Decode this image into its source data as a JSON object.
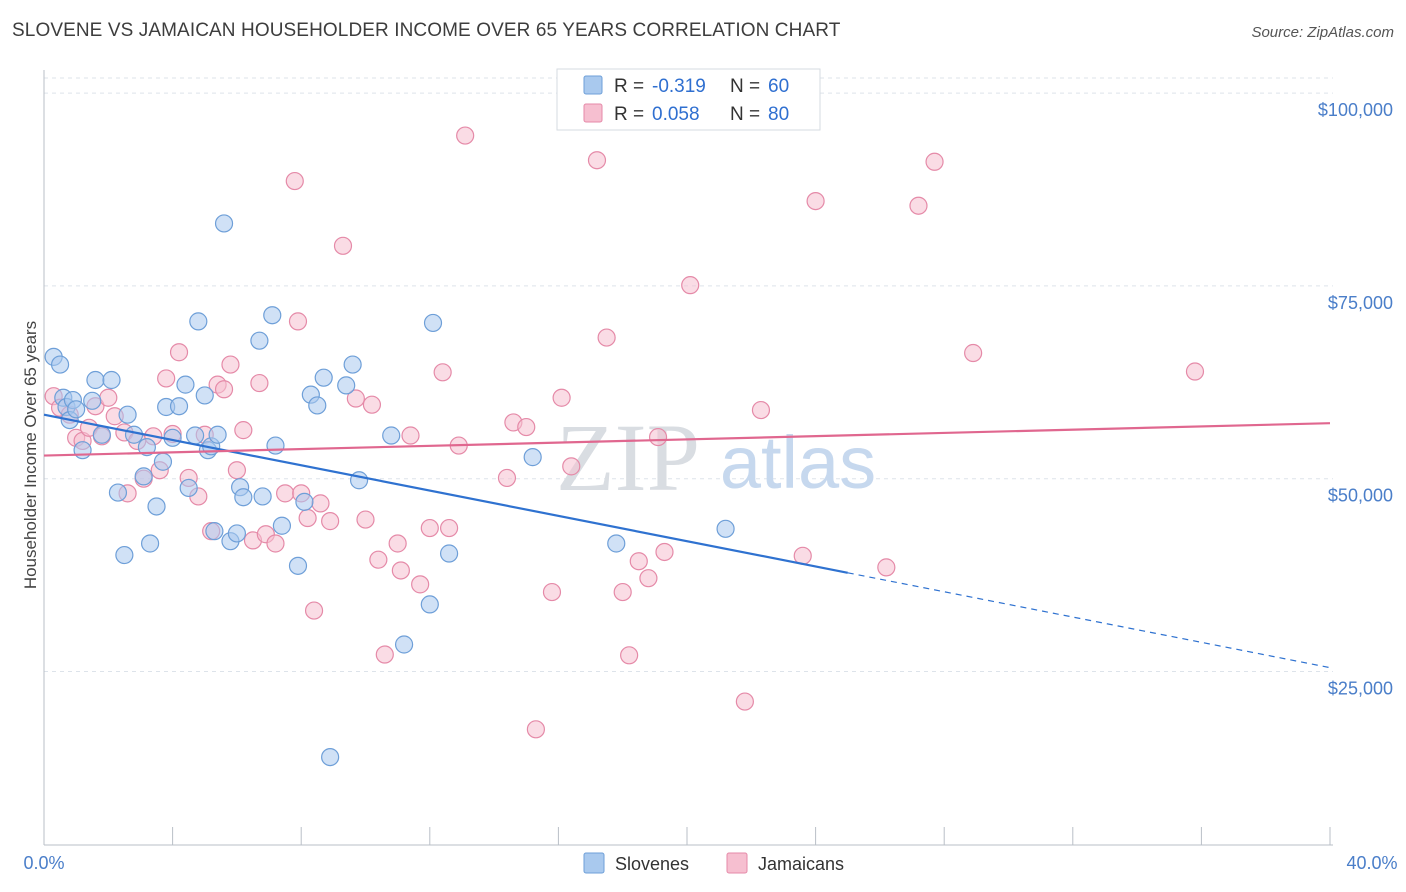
{
  "header": {
    "title": "SLOVENE VS JAMAICAN HOUSEHOLDER INCOME OVER 65 YEARS CORRELATION CHART",
    "source": "Source: ZipAtlas.com"
  },
  "watermark": {
    "zip": "ZIP",
    "atlas": "atlas"
  },
  "legend_top": {
    "rows": [
      {
        "r_label": "R = ",
        "r_value": "-0.319",
        "n_label": "N = ",
        "n_value": "60",
        "color": "#a9c9ee"
      },
      {
        "r_label": "R = ",
        "r_value": "0.058",
        "n_label": "N = ",
        "n_value": "80",
        "color": "#f4b9cc"
      }
    ]
  },
  "legend_bottom": [
    "Slovenes",
    "Jamaicans"
  ],
  "colors": {
    "slovene_fill": "#a9c9ee",
    "slovene_stroke": "#6e9fd8",
    "slovene_line": "#2f72d0",
    "jamaican_fill": "#f6bfd0",
    "jamaican_stroke": "#e58aa8",
    "jamaican_line": "#e0678f",
    "axis_text": "#4a7ec9",
    "grid": "#dde3ea"
  },
  "chart_data": {
    "type": "scatter",
    "title": "SLOVENE VS JAMAICAN HOUSEHOLDER INCOME OVER 65 YEARS CORRELATION CHART",
    "xlabel": "",
    "ylabel": "Householder Income Over 65 years",
    "xlim": [
      0,
      40
    ],
    "ylim": [
      2500,
      103000
    ],
    "x_tick_labels": [
      "0.0%",
      "40.0%"
    ],
    "y_ticks": [
      25000,
      50000,
      75000,
      100000
    ],
    "y_tick_labels": [
      "$25,000",
      "$50,000",
      "$75,000",
      "$100,000"
    ],
    "grid": "horizontal dashed",
    "legend_position": "top-center",
    "series": [
      {
        "name": "Slovenes",
        "r": -0.319,
        "n": 60,
        "trend": {
          "x0": 0,
          "y0": 58300,
          "x1": 25,
          "y1": 37800,
          "dash_x1": 40,
          "dash_y1": 25500
        },
        "points": [
          [
            0.3,
            65800
          ],
          [
            0.5,
            64800
          ],
          [
            0.6,
            60500
          ],
          [
            0.7,
            59300
          ],
          [
            0.8,
            57600
          ],
          [
            0.9,
            60200
          ],
          [
            1.0,
            59000
          ],
          [
            1.2,
            53700
          ],
          [
            1.5,
            60100
          ],
          [
            1.6,
            62800
          ],
          [
            1.8,
            55700
          ],
          [
            2.1,
            62800
          ],
          [
            2.3,
            48200
          ],
          [
            2.5,
            40100
          ],
          [
            2.6,
            58300
          ],
          [
            2.8,
            55700
          ],
          [
            3.1,
            50300
          ],
          [
            3.2,
            54100
          ],
          [
            3.3,
            41600
          ],
          [
            3.5,
            46400
          ],
          [
            3.7,
            52200
          ],
          [
            3.8,
            59300
          ],
          [
            4.0,
            55300
          ],
          [
            4.2,
            59400
          ],
          [
            4.4,
            62200
          ],
          [
            4.5,
            48800
          ],
          [
            4.7,
            55600
          ],
          [
            4.8,
            70400
          ],
          [
            5.0,
            60800
          ],
          [
            5.1,
            53700
          ],
          [
            5.2,
            54200
          ],
          [
            5.3,
            43200
          ],
          [
            5.4,
            55700
          ],
          [
            5.6,
            83100
          ],
          [
            5.8,
            41900
          ],
          [
            6.0,
            42900
          ],
          [
            6.1,
            48900
          ],
          [
            6.2,
            47600
          ],
          [
            6.7,
            67900
          ],
          [
            6.8,
            47700
          ],
          [
            7.1,
            71200
          ],
          [
            7.2,
            54300
          ],
          [
            7.4,
            43900
          ],
          [
            7.9,
            38700
          ],
          [
            8.1,
            47000
          ],
          [
            8.3,
            60900
          ],
          [
            8.5,
            59500
          ],
          [
            8.7,
            63100
          ],
          [
            8.9,
            13900
          ],
          [
            9.4,
            62100
          ],
          [
            9.6,
            64800
          ],
          [
            9.8,
            49800
          ],
          [
            10.8,
            55600
          ],
          [
            11.2,
            28500
          ],
          [
            12.0,
            33700
          ],
          [
            12.1,
            70200
          ],
          [
            12.6,
            40300
          ],
          [
            15.2,
            52800
          ],
          [
            17.8,
            41600
          ],
          [
            21.2,
            43500
          ]
        ]
      },
      {
        "name": "Jamaicans",
        "r": 0.058,
        "n": 80,
        "trend": {
          "x0": 0,
          "y0": 53000,
          "x1": 40,
          "y1": 57200
        },
        "points": [
          [
            0.3,
            60700
          ],
          [
            0.5,
            59200
          ],
          [
            0.8,
            58300
          ],
          [
            1.0,
            55300
          ],
          [
            1.2,
            54900
          ],
          [
            1.4,
            56600
          ],
          [
            1.6,
            59400
          ],
          [
            1.8,
            55500
          ],
          [
            2.0,
            60500
          ],
          [
            2.2,
            58100
          ],
          [
            2.5,
            56000
          ],
          [
            2.6,
            48100
          ],
          [
            2.9,
            54900
          ],
          [
            3.1,
            50000
          ],
          [
            3.4,
            55500
          ],
          [
            3.6,
            51100
          ],
          [
            3.8,
            63000
          ],
          [
            4.0,
            55800
          ],
          [
            4.2,
            66400
          ],
          [
            4.5,
            50100
          ],
          [
            4.8,
            47700
          ],
          [
            5.0,
            55700
          ],
          [
            5.2,
            43200
          ],
          [
            5.4,
            62200
          ],
          [
            5.6,
            61600
          ],
          [
            5.8,
            64800
          ],
          [
            6.0,
            51100
          ],
          [
            6.2,
            56300
          ],
          [
            6.5,
            42000
          ],
          [
            6.7,
            62400
          ],
          [
            6.9,
            42800
          ],
          [
            7.2,
            41600
          ],
          [
            7.5,
            48100
          ],
          [
            7.8,
            88600
          ],
          [
            7.9,
            70400
          ],
          [
            8.0,
            48100
          ],
          [
            8.2,
            44900
          ],
          [
            8.4,
            32900
          ],
          [
            8.6,
            46800
          ],
          [
            8.9,
            44500
          ],
          [
            9.3,
            80200
          ],
          [
            9.7,
            60400
          ],
          [
            10.0,
            44700
          ],
          [
            10.2,
            59600
          ],
          [
            10.4,
            39500
          ],
          [
            10.6,
            27200
          ],
          [
            11.0,
            41600
          ],
          [
            11.1,
            38100
          ],
          [
            11.4,
            55600
          ],
          [
            11.7,
            36300
          ],
          [
            12.0,
            43600
          ],
          [
            12.4,
            63800
          ],
          [
            12.6,
            43600
          ],
          [
            12.9,
            54300
          ],
          [
            13.1,
            94500
          ],
          [
            14.4,
            50100
          ],
          [
            14.6,
            57300
          ],
          [
            15.0,
            56700
          ],
          [
            15.3,
            17500
          ],
          [
            15.8,
            35300
          ],
          [
            16.1,
            60500
          ],
          [
            16.4,
            51600
          ],
          [
            17.2,
            91300
          ],
          [
            17.5,
            68300
          ],
          [
            18.0,
            35300
          ],
          [
            18.2,
            27100
          ],
          [
            18.5,
            39300
          ],
          [
            18.8,
            37100
          ],
          [
            19.1,
            55400
          ],
          [
            19.3,
            40500
          ],
          [
            20.1,
            75100
          ],
          [
            21.8,
            21100
          ],
          [
            22.3,
            58900
          ],
          [
            23.6,
            40000
          ],
          [
            24.0,
            86000
          ],
          [
            26.2,
            38500
          ],
          [
            27.2,
            85400
          ],
          [
            27.7,
            91100
          ],
          [
            28.9,
            66300
          ],
          [
            35.8,
            63900
          ]
        ]
      }
    ]
  }
}
